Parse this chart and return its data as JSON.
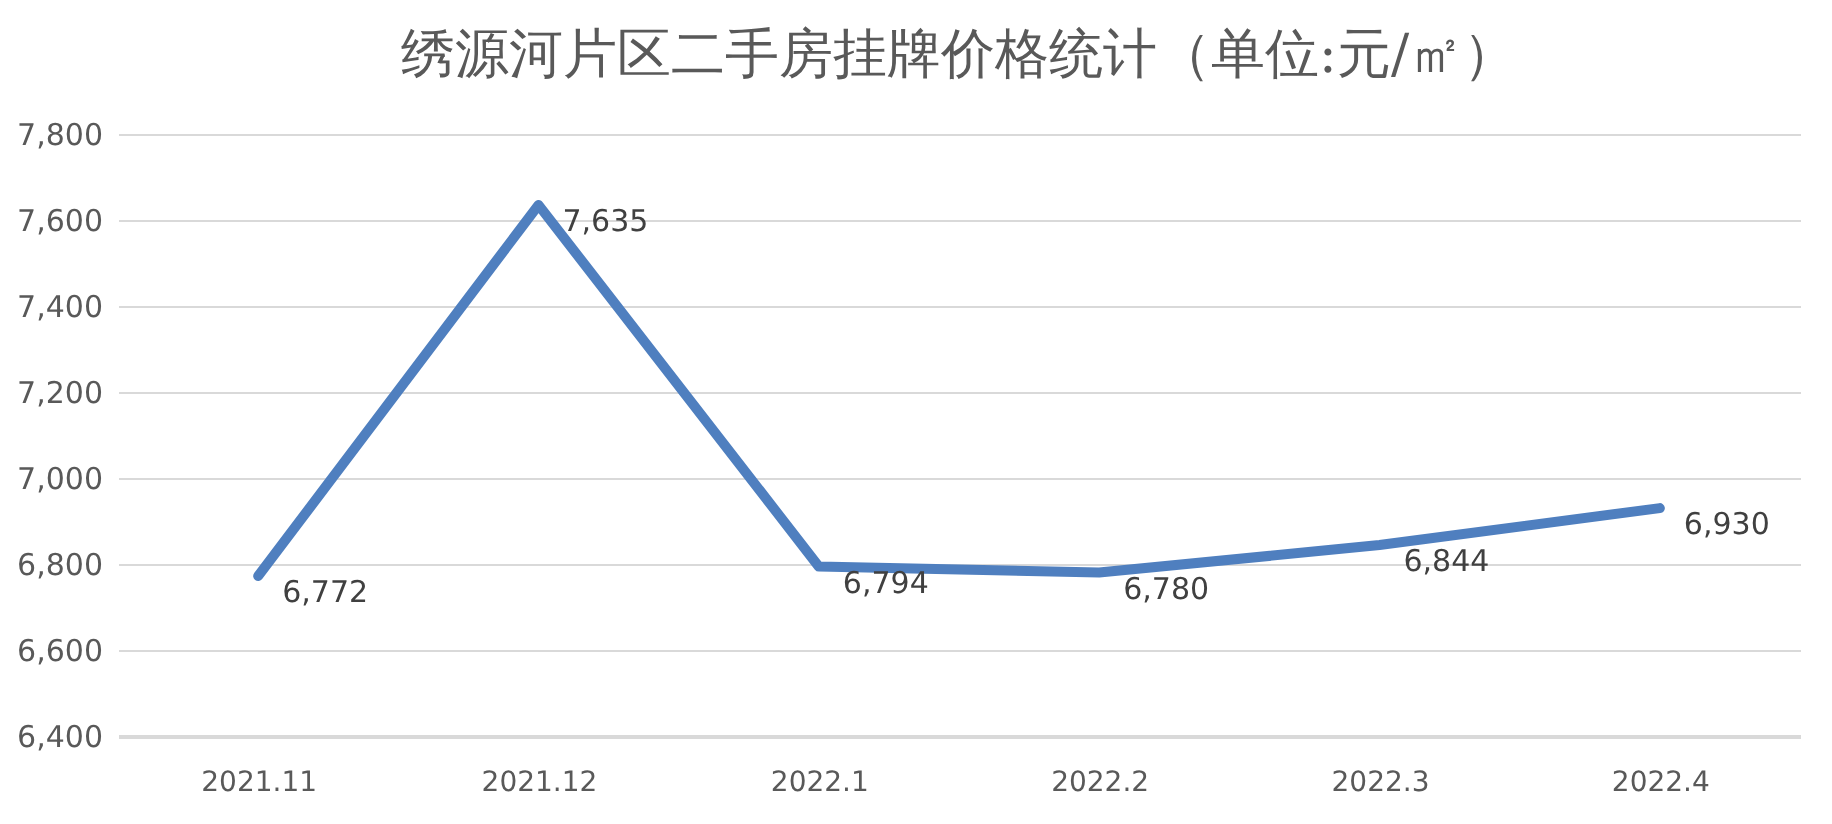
{
  "chart_data": {
    "type": "line",
    "title": "绣源河片区二手房挂牌价格统计（单位:元/㎡）",
    "categories": [
      "2021.11",
      "2021.12",
      "2022.1",
      "2022.2",
      "2022.3",
      "2022.4"
    ],
    "series": [
      {
        "color": "#4f7fbf",
        "values": [
          6772,
          7635,
          6794,
          6780,
          6844,
          6930
        ],
        "value_labels": [
          "6,772",
          "7,635",
          "6,794",
          "6,780",
          "6,844",
          "6,930"
        ]
      }
    ],
    "ylim": [
      6400,
      7800
    ],
    "yticks": [
      {
        "value": 6400,
        "label": "6,400"
      },
      {
        "value": 6600,
        "label": "6,600"
      },
      {
        "value": 6800,
        "label": "6,800"
      },
      {
        "value": 7000,
        "label": "7,000"
      },
      {
        "value": 7200,
        "label": "7,200"
      },
      {
        "value": 7400,
        "label": "7,400"
      },
      {
        "value": 7600,
        "label": "7,600"
      },
      {
        "value": 7800,
        "label": "7,800"
      }
    ],
    "grid": "y",
    "line_style": "solid"
  }
}
